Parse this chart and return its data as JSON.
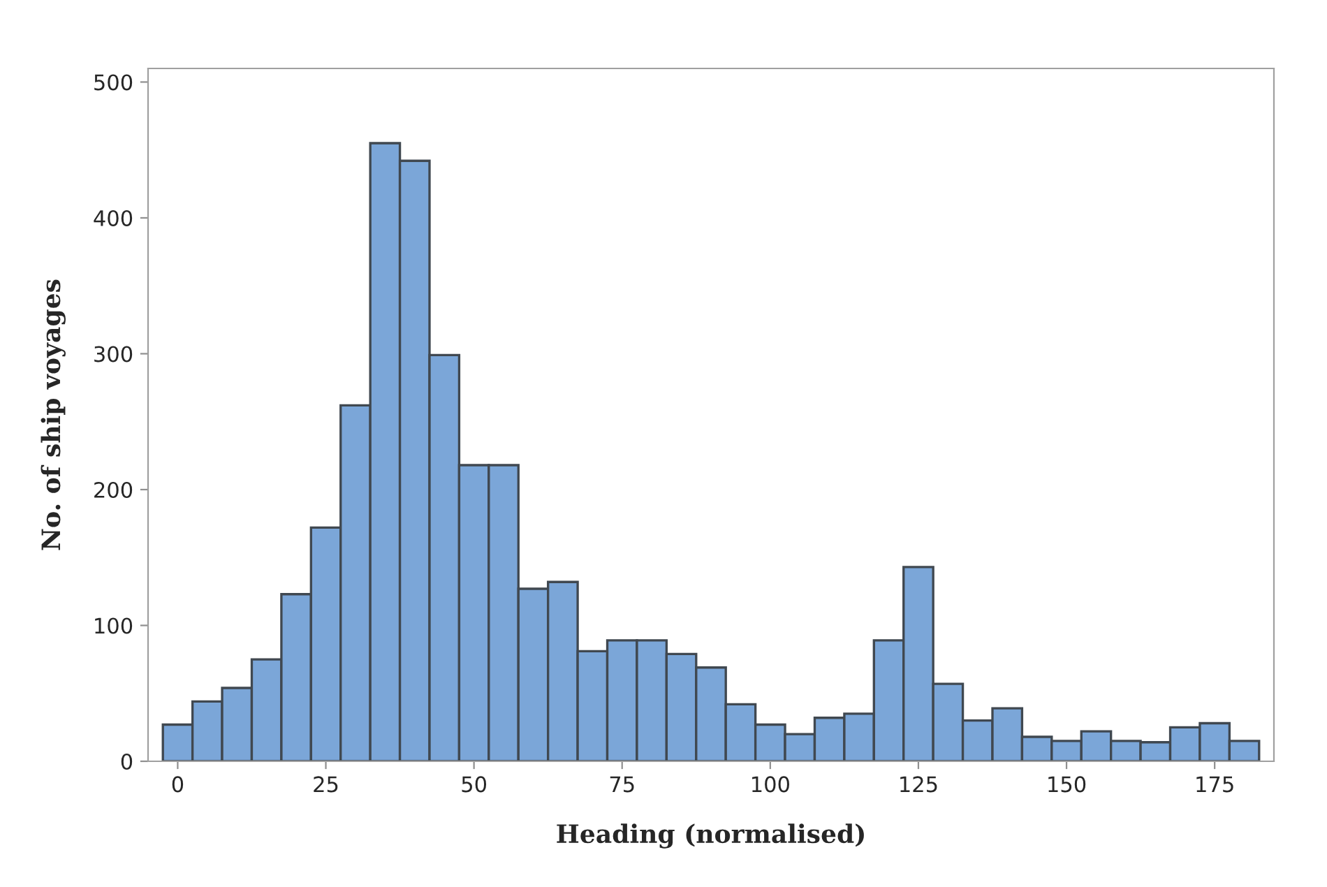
{
  "chart_data": {
    "type": "histogram",
    "xlabel": "Heading (normalised)",
    "ylabel": "No. of ship voyages",
    "bins": [
      -2.5,
      2.5,
      7.5,
      12.5,
      17.5,
      22.5,
      27.5,
      32.5,
      37.5,
      42.5,
      47.5,
      52.5,
      57.5,
      62.5,
      67.5,
      72.5,
      77.5,
      82.5,
      87.5,
      92.5,
      97.5,
      102.5,
      107.5,
      112.5,
      117.5,
      122.5,
      127.5,
      132.5,
      137.5,
      142.5,
      147.5,
      152.5,
      157.5,
      162.5,
      167.5,
      172.5,
      177.5,
      182.5
    ],
    "values": [
      27,
      44,
      54,
      75,
      123,
      172,
      262,
      455,
      442,
      299,
      218,
      218,
      127,
      132,
      81,
      89,
      89,
      79,
      69,
      42,
      27,
      20,
      32,
      35,
      89,
      143,
      57,
      30,
      39,
      18,
      15,
      22,
      15,
      14,
      25,
      28,
      15
    ],
    "color": "#7ba6d8",
    "xlim": [
      -5,
      185
    ],
    "xticks": [
      0,
      25,
      50,
      75,
      100,
      125,
      150,
      175
    ],
    "ylim": [
      0,
      510
    ],
    "yticks": [
      0,
      100,
      200,
      300,
      400,
      500
    ],
    "grid": false,
    "legend": false
  }
}
